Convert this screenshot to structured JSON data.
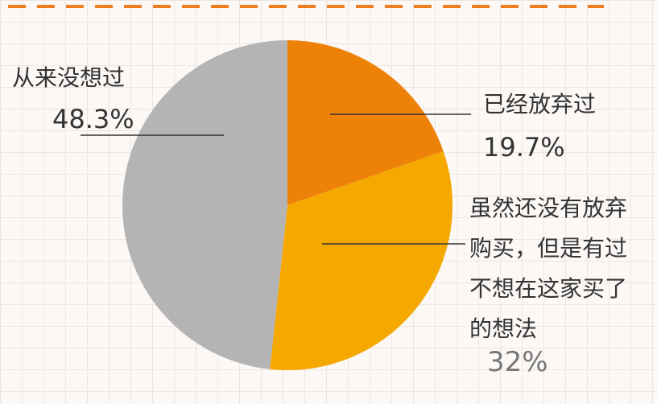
{
  "chart_data": {
    "type": "pie",
    "categories": [
      "已经放弃过",
      "虽然还没有放弃购买，但是有过不想在这家买了的想法",
      "从来没想过"
    ],
    "values": [
      19.7,
      32,
      48.3
    ],
    "value_labels": [
      "19.7%",
      "32%",
      "48.3%"
    ],
    "colors": [
      "#ee8208",
      "#f5a800",
      "#b5b4b4"
    ]
  }
}
